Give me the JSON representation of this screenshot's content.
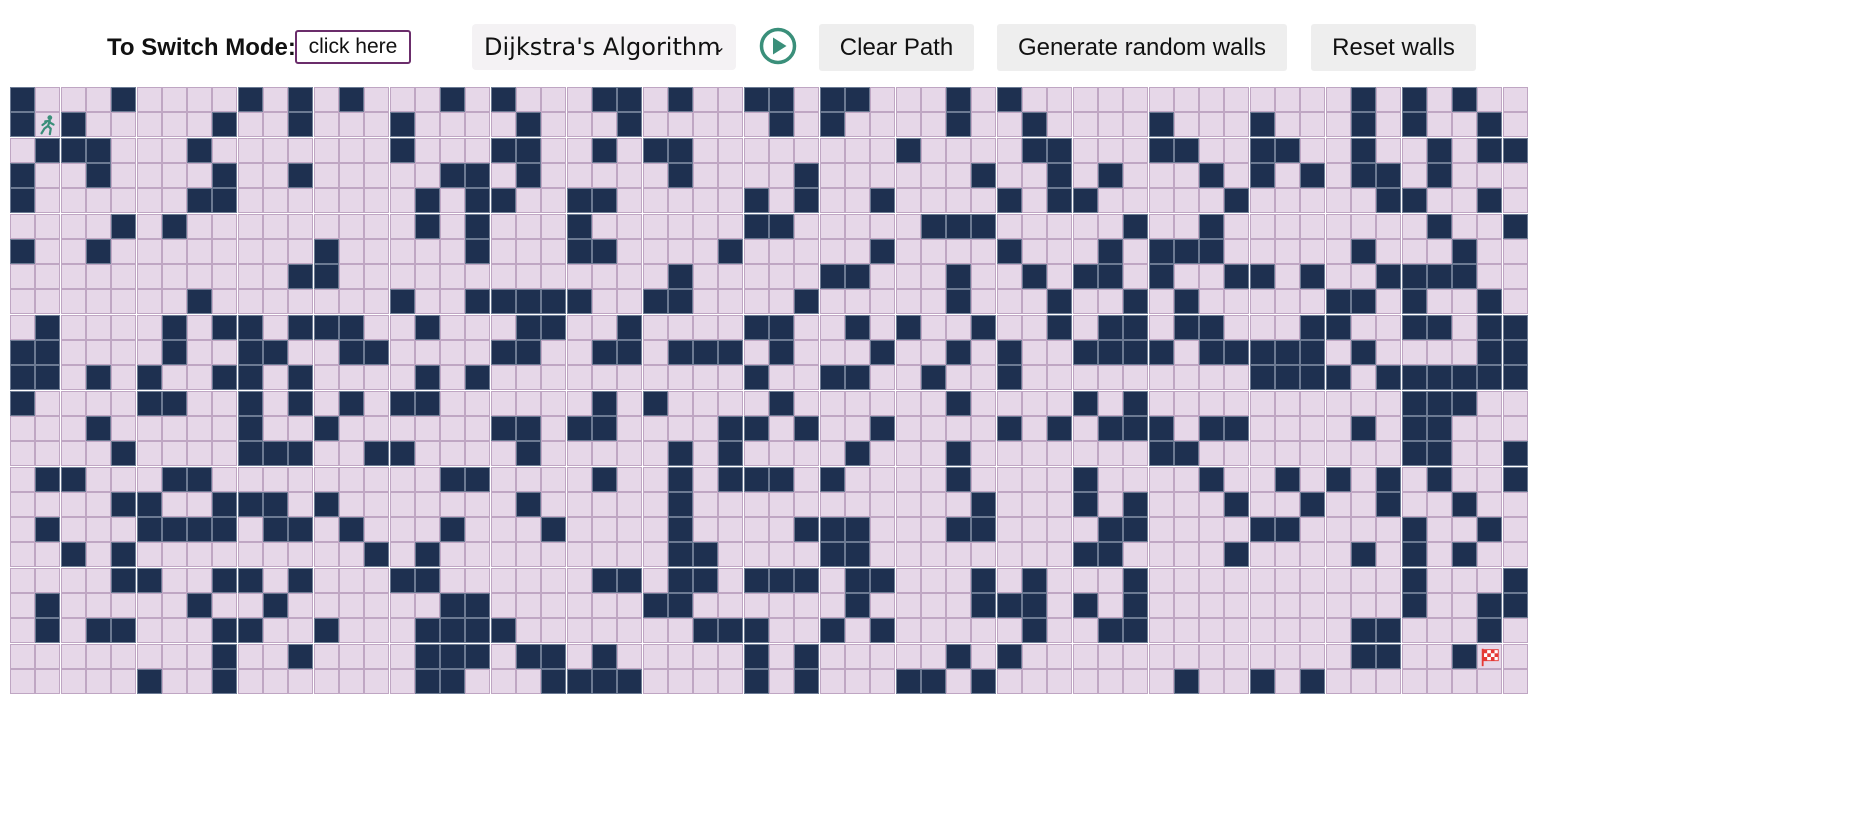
{
  "toolbar": {
    "mode_label": "To Switch Mode:",
    "mode_button": "click here",
    "algorithm": "Dijkstra's Algorithm",
    "play_icon": "play-icon",
    "clear_path": "Clear Path",
    "generate_walls": "Generate random walls",
    "reset_walls": "Reset walls"
  },
  "colors": {
    "wall": "#1e3050",
    "empty": "#e6d7e8",
    "accent": "#3a8f7a",
    "finish": "#e53935"
  },
  "grid": {
    "rows": 24,
    "cols": 60,
    "start": {
      "row": 1,
      "col": 1,
      "icon": "runner-icon"
    },
    "finish": {
      "row": 22,
      "col": 58,
      "icon": "checkered-flag-icon"
    },
    "walls": [
      [
        0,
        4,
        9,
        11,
        13,
        17,
        19,
        23,
        24,
        26,
        29,
        30,
        32,
        33,
        37,
        39,
        53,
        55,
        57
      ],
      [
        0,
        2,
        8,
        11,
        15,
        20,
        24,
        30,
        32,
        37,
        40,
        45,
        49,
        53,
        55,
        58
      ],
      [
        1,
        2,
        3,
        7,
        15,
        19,
        20,
        23,
        25,
        26,
        35,
        40,
        41,
        45,
        46,
        49,
        50,
        53,
        56,
        58,
        59
      ],
      [
        0,
        3,
        8,
        11,
        17,
        18,
        20,
        26,
        31,
        38,
        41,
        43,
        47,
        49,
        51,
        53,
        54,
        56
      ],
      [
        0,
        7,
        8,
        16,
        18,
        19,
        22,
        23,
        29,
        31,
        34,
        39,
        41,
        42,
        48,
        54,
        55,
        58
      ],
      [
        4,
        6,
        16,
        18,
        22,
        29,
        30,
        36,
        37,
        38,
        44,
        47,
        56,
        59
      ],
      [
        0,
        3,
        12,
        18,
        22,
        23,
        28,
        34,
        39,
        43,
        45,
        46,
        47,
        53,
        57
      ],
      [
        11,
        12,
        26,
        32,
        33,
        37,
        40,
        42,
        43,
        45,
        48,
        49,
        51,
        54,
        55,
        56,
        57
      ],
      [
        7,
        15,
        18,
        19,
        20,
        21,
        22,
        25,
        26,
        31,
        37,
        41,
        44,
        46,
        52,
        53,
        55,
        58
      ],
      [
        1,
        6,
        8,
        9,
        11,
        12,
        13,
        16,
        20,
        21,
        24,
        29,
        30,
        33,
        35,
        38,
        41,
        43,
        44,
        46,
        47,
        51,
        52,
        55,
        56,
        58,
        59
      ],
      [
        0,
        1,
        6,
        9,
        10,
        13,
        14,
        19,
        20,
        23,
        24,
        26,
        27,
        28,
        30,
        34,
        37,
        39,
        42,
        43,
        44,
        45,
        47,
        48,
        49,
        50,
        51,
        53,
        58,
        59
      ],
      [
        0,
        1,
        3,
        5,
        8,
        9,
        11,
        16,
        18,
        29,
        32,
        33,
        36,
        39,
        49,
        50,
        51,
        52,
        54,
        55,
        56,
        57,
        58,
        59
      ],
      [
        0,
        5,
        6,
        9,
        11,
        13,
        15,
        16,
        23,
        25,
        30,
        37,
        42,
        44,
        55,
        56,
        57
      ],
      [
        3,
        9,
        12,
        19,
        20,
        22,
        23,
        28,
        29,
        31,
        34,
        39,
        41,
        43,
        44,
        45,
        47,
        48,
        53,
        55,
        56
      ],
      [
        4,
        9,
        10,
        11,
        14,
        15,
        20,
        26,
        28,
        33,
        37,
        45,
        46,
        55,
        56,
        59
      ],
      [
        1,
        2,
        6,
        7,
        17,
        18,
        23,
        26,
        28,
        29,
        30,
        32,
        37,
        42,
        47,
        50,
        52,
        54,
        56,
        59
      ],
      [
        4,
        5,
        8,
        9,
        10,
        12,
        20,
        26,
        38,
        42,
        44,
        48,
        51,
        54,
        57
      ],
      [
        1,
        5,
        6,
        7,
        8,
        10,
        11,
        13,
        17,
        21,
        26,
        31,
        32,
        33,
        37,
        38,
        43,
        44,
        49,
        50,
        55,
        58
      ],
      [
        2,
        4,
        14,
        16,
        26,
        27,
        32,
        33,
        42,
        43,
        48,
        53,
        55,
        57
      ],
      [
        4,
        5,
        8,
        9,
        11,
        15,
        16,
        23,
        24,
        26,
        27,
        29,
        30,
        31,
        33,
        34,
        38,
        40,
        44,
        55,
        59
      ],
      [
        1,
        7,
        10,
        17,
        18,
        25,
        26,
        33,
        38,
        39,
        40,
        42,
        44,
        55,
        58,
        59
      ],
      [
        1,
        3,
        4,
        8,
        9,
        12,
        16,
        17,
        18,
        19,
        27,
        28,
        29,
        32,
        34,
        40,
        43,
        44,
        53,
        54,
        58
      ],
      [
        8,
        11,
        16,
        17,
        18,
        20,
        21,
        23,
        29,
        31,
        37,
        39,
        53,
        54,
        57
      ],
      [
        5,
        8,
        16,
        17,
        21,
        22,
        23,
        24,
        29,
        31,
        35,
        36,
        38,
        46,
        49,
        51
      ]
    ]
  }
}
